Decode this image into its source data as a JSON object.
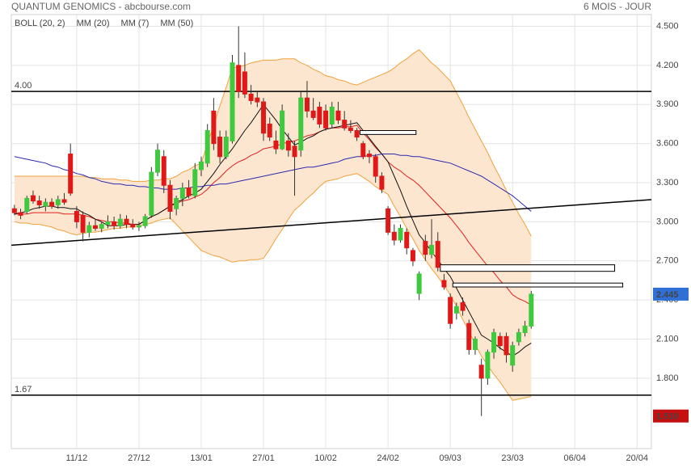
{
  "chart_data": {
    "type": "candlestick",
    "title": "QUANTUM GENOMICS - abcbourse.com",
    "subtitle": "6 MOIS - JOUR",
    "grid": true,
    "xlim": [
      -0.5,
      102.3
    ],
    "xticks": [
      {
        "value": 10,
        "label": "11/12"
      },
      {
        "value": 20,
        "label": "27/12"
      },
      {
        "value": 30,
        "label": "13/01"
      },
      {
        "value": 40,
        "label": "27/01"
      },
      {
        "value": 50,
        "label": "10/02"
      },
      {
        "value": 60,
        "label": "24/02"
      },
      {
        "value": 70,
        "label": "09/03"
      },
      {
        "value": 80,
        "label": "23/03"
      },
      {
        "value": 90,
        "label": "06/04"
      },
      {
        "value": 100,
        "label": "20/04"
      }
    ],
    "ylim": [
      1.26,
      4.59
    ],
    "yticks": [
      {
        "value": 4.5,
        "label": "4.500"
      },
      {
        "value": 4.2,
        "label": "4.200"
      },
      {
        "value": 3.9,
        "label": "3.900"
      },
      {
        "value": 3.6,
        "label": "3.600"
      },
      {
        "value": 3.3,
        "label": "3.300"
      },
      {
        "value": 3.0,
        "label": "3.000"
      },
      {
        "value": 2.7,
        "label": "2.700"
      },
      {
        "value": 2.4,
        "label": "2.400"
      },
      {
        "value": 2.1,
        "label": "2.100"
      },
      {
        "value": 1.8,
        "label": "1.800"
      }
    ],
    "up_color": "#3fc93f",
    "down_color": "#e01818",
    "open": [
      3.1,
      3.07,
      3.08,
      3.2,
      3.16,
      3.12,
      3.15,
      3.13,
      3.17,
      3.52,
      3.08,
      3.05,
      2.92,
      2.97,
      2.95,
      2.98,
      3.0,
      2.97,
      3.02,
      2.98,
      2.96,
      2.97,
      3.05,
      3.38,
      3.5,
      3.28,
      3.1,
      3.18,
      3.26,
      3.2,
      3.4,
      3.45,
      3.85,
      3.65,
      3.5,
      3.62,
      4.2,
      4.15,
      3.98,
      3.95,
      3.92,
      3.75,
      3.62,
      3.56,
      3.62,
      3.58,
      3.55,
      3.95,
      3.85,
      3.88,
      3.85,
      3.75,
      3.85,
      3.78,
      3.72,
      3.7,
      3.6,
      3.52,
      3.5,
      3.35,
      3.1,
      2.92,
      2.86,
      2.92,
      2.78,
      2.45,
      2.85,
      2.75,
      2.85,
      2.55,
      2.42,
      2.3,
      2.38,
      2.22,
      2.02,
      1.9,
      1.8,
      2.0,
      2.12,
      2.12,
      1.9,
      2.08,
      2.15,
      2.2
    ],
    "high": [
      3.13,
      3.1,
      3.2,
      3.24,
      3.2,
      3.18,
      3.18,
      3.2,
      3.22,
      3.6,
      3.12,
      3.08,
      3.0,
      3.02,
      3.0,
      3.05,
      3.04,
      3.06,
      3.05,
      3.02,
      3.0,
      3.06,
      3.42,
      3.6,
      3.55,
      3.32,
      3.2,
      3.3,
      3.32,
      3.45,
      3.5,
      3.75,
      3.95,
      3.7,
      3.7,
      4.28,
      4.5,
      4.3,
      4.05,
      4.0,
      3.95,
      3.8,
      3.7,
      3.9,
      3.68,
      3.62,
      4.0,
      4.08,
      3.95,
      3.92,
      3.9,
      3.92,
      3.92,
      3.85,
      3.78,
      3.72,
      3.62,
      3.55,
      3.52,
      3.38,
      3.12,
      2.98,
      2.98,
      2.95,
      2.8,
      2.62,
      2.9,
      3.02,
      2.92,
      2.6,
      2.45,
      2.38,
      2.42,
      2.25,
      2.12,
      1.95,
      2.02,
      2.18,
      2.15,
      2.15,
      2.08,
      2.18,
      2.24,
      2.47
    ],
    "low": [
      3.05,
      3.02,
      3.06,
      3.14,
      3.1,
      3.08,
      3.1,
      3.1,
      3.13,
      3.2,
      2.95,
      2.85,
      2.88,
      2.93,
      2.92,
      2.95,
      2.94,
      2.95,
      2.95,
      2.94,
      2.93,
      2.95,
      3.03,
      3.35,
      3.22,
      3.02,
      3.05,
      3.12,
      3.18,
      3.18,
      3.35,
      3.42,
      3.55,
      3.45,
      3.48,
      3.6,
      3.95,
      3.95,
      3.9,
      3.88,
      3.62,
      3.62,
      3.52,
      3.55,
      3.5,
      3.2,
      3.5,
      3.8,
      3.78,
      3.72,
      3.7,
      3.72,
      3.75,
      3.7,
      3.68,
      3.62,
      3.48,
      3.45,
      3.3,
      3.22,
      2.9,
      2.82,
      2.84,
      2.75,
      2.66,
      2.4,
      2.7,
      2.72,
      2.62,
      2.48,
      2.18,
      2.25,
      2.28,
      1.98,
      1.98,
      1.51,
      1.75,
      1.95,
      2.02,
      1.92,
      1.85,
      2.05,
      2.12,
      2.18
    ],
    "close": [
      3.07,
      3.05,
      3.18,
      3.16,
      3.13,
      3.15,
      3.12,
      3.17,
      3.15,
      3.22,
      3.0,
      2.92,
      2.97,
      2.95,
      2.98,
      3.0,
      2.97,
      3.02,
      2.98,
      2.96,
      2.97,
      3.04,
      3.38,
      3.55,
      3.28,
      3.08,
      3.18,
      3.26,
      3.2,
      3.4,
      3.46,
      3.7,
      3.6,
      3.5,
      3.65,
      4.22,
      4.0,
      3.98,
      3.93,
      3.92,
      3.68,
      3.65,
      3.56,
      3.85,
      3.55,
      3.5,
      3.95,
      3.85,
      3.8,
      3.75,
      3.72,
      3.88,
      3.78,
      3.72,
      3.7,
      3.65,
      3.5,
      3.5,
      3.35,
      3.25,
      2.92,
      2.86,
      2.95,
      2.8,
      2.7,
      2.6,
      2.75,
      2.82,
      2.65,
      2.5,
      2.22,
      2.35,
      2.32,
      2.02,
      2.1,
      1.8,
      2.0,
      2.15,
      2.05,
      1.98,
      2.05,
      2.15,
      2.2,
      2.445
    ],
    "series": [
      {
        "name": "BOLL (20, 2)",
        "color": "#f0a23c",
        "fill": "#fde6cf",
        "upper": [
          3.35,
          3.35,
          3.35,
          3.35,
          3.35,
          3.35,
          3.35,
          3.35,
          3.35,
          3.35,
          3.35,
          3.35,
          3.34,
          3.34,
          3.33,
          3.33,
          3.33,
          3.32,
          3.32,
          3.31,
          3.31,
          3.31,
          3.32,
          3.32,
          3.33,
          3.33,
          3.35,
          3.38,
          3.4,
          3.43,
          3.45,
          3.6,
          3.74,
          3.89,
          4.03,
          4.18,
          4.19,
          4.2,
          4.22,
          4.23,
          4.24,
          4.24,
          4.24,
          4.25,
          4.25,
          4.25,
          4.22,
          4.2,
          4.17,
          4.15,
          4.12,
          4.11,
          4.09,
          4.08,
          4.06,
          4.05,
          4.07,
          4.09,
          4.11,
          4.13,
          4.15,
          4.18,
          4.22,
          4.25,
          4.29,
          4.32,
          4.27,
          4.22,
          4.18,
          4.13,
          4.08,
          3.99,
          3.9,
          3.8,
          3.71,
          3.62,
          3.53,
          3.43,
          3.34,
          3.24,
          3.15,
          3.06,
          2.98,
          2.89
        ],
        "lower": [
          3.0,
          2.99,
          2.99,
          2.98,
          2.98,
          2.97,
          2.96,
          2.94,
          2.93,
          2.91,
          2.9,
          2.91,
          2.92,
          2.92,
          2.93,
          2.94,
          2.95,
          2.95,
          2.96,
          2.96,
          2.97,
          2.98,
          2.99,
          3.01,
          3.02,
          3.03,
          2.98,
          2.93,
          2.88,
          2.83,
          2.78,
          2.76,
          2.74,
          2.73,
          2.71,
          2.69,
          2.7,
          2.7,
          2.71,
          2.71,
          2.72,
          2.79,
          2.87,
          2.94,
          3.02,
          3.09,
          3.13,
          3.18,
          3.22,
          3.27,
          3.31,
          3.32,
          3.33,
          3.35,
          3.36,
          3.37,
          3.34,
          3.31,
          3.27,
          3.24,
          3.21,
          3.12,
          3.04,
          2.95,
          2.87,
          2.78,
          2.71,
          2.64,
          2.58,
          2.51,
          2.44,
          2.35,
          2.25,
          2.16,
          2.06,
          1.97,
          1.9,
          1.83,
          1.77,
          1.7,
          1.63,
          1.64,
          1.65,
          1.66
        ]
      },
      {
        "name": "MM (20)",
        "color": "#e02020",
        "values": [
          3.06,
          3.06,
          3.06,
          3.07,
          3.07,
          3.07,
          3.07,
          3.07,
          3.06,
          3.06,
          3.06,
          3.05,
          3.04,
          3.02,
          3.01,
          3.0,
          3.0,
          2.99,
          2.99,
          2.98,
          2.98,
          3.01,
          3.04,
          3.06,
          3.09,
          3.12,
          3.14,
          3.16,
          3.17,
          3.19,
          3.21,
          3.25,
          3.3,
          3.34,
          3.39,
          3.43,
          3.46,
          3.48,
          3.51,
          3.53,
          3.56,
          3.57,
          3.58,
          3.6,
          3.61,
          3.62,
          3.64,
          3.66,
          3.67,
          3.69,
          3.71,
          3.72,
          3.72,
          3.73,
          3.73,
          3.74,
          3.68,
          3.63,
          3.57,
          3.52,
          3.46,
          3.42,
          3.39,
          3.35,
          3.32,
          3.28,
          3.23,
          3.18,
          3.13,
          3.08,
          3.03,
          2.97,
          2.91,
          2.84,
          2.78,
          2.72,
          2.66,
          2.61,
          2.55,
          2.5,
          2.44,
          2.41,
          2.39,
          2.36
        ]
      },
      {
        "name": "MM (7)",
        "color": "#111111",
        "values": [
          3.06,
          3.07,
          3.08,
          3.1,
          3.11,
          3.12,
          3.12,
          3.11,
          3.11,
          3.1,
          3.1,
          3.07,
          3.05,
          3.02,
          3.0,
          2.97,
          2.97,
          2.97,
          2.98,
          2.98,
          2.98,
          3.01,
          3.04,
          3.06,
          3.09,
          3.12,
          3.15,
          3.17,
          3.2,
          3.22,
          3.25,
          3.31,
          3.37,
          3.44,
          3.5,
          3.56,
          3.63,
          3.7,
          3.76,
          3.83,
          3.9,
          3.84,
          3.78,
          3.71,
          3.65,
          3.59,
          3.61,
          3.64,
          3.66,
          3.69,
          3.71,
          3.72,
          3.73,
          3.74,
          3.75,
          3.76,
          3.7,
          3.64,
          3.58,
          3.52,
          3.46,
          3.35,
          3.24,
          3.12,
          3.01,
          2.9,
          2.84,
          2.77,
          2.71,
          2.64,
          2.58,
          2.49,
          2.4,
          2.31,
          2.22,
          2.13,
          2.1,
          2.07,
          2.03,
          2.0,
          1.97,
          2.0,
          2.04,
          2.07
        ]
      },
      {
        "name": "MM (50)",
        "color": "#2a2ab0",
        "values": [
          3.5,
          3.49,
          3.48,
          3.47,
          3.46,
          3.45,
          3.43,
          3.42,
          3.4,
          3.39,
          3.37,
          3.36,
          3.34,
          3.33,
          3.31,
          3.3,
          3.29,
          3.29,
          3.28,
          3.28,
          3.27,
          3.27,
          3.26,
          3.26,
          3.25,
          3.25,
          3.25,
          3.26,
          3.26,
          3.27,
          3.27,
          3.28,
          3.28,
          3.29,
          3.29,
          3.3,
          3.31,
          3.32,
          3.33,
          3.34,
          3.35,
          3.36,
          3.37,
          3.38,
          3.39,
          3.4,
          3.41,
          3.42,
          3.42,
          3.43,
          3.44,
          3.45,
          3.46,
          3.48,
          3.49,
          3.5,
          3.5,
          3.51,
          3.51,
          3.52,
          3.52,
          3.52,
          3.51,
          3.51,
          3.5,
          3.5,
          3.49,
          3.48,
          3.47,
          3.46,
          3.45,
          3.43,
          3.41,
          3.39,
          3.37,
          3.35,
          3.32,
          3.29,
          3.26,
          3.23,
          3.2,
          3.16,
          3.12,
          3.08
        ]
      }
    ],
    "levels": [
      {
        "value": 4.0,
        "label": "4.00"
      },
      {
        "value": 1.67,
        "label": "1.67"
      }
    ],
    "trendline": [
      2.82,
      3.17
    ],
    "boxes": [
      {
        "x": [
          55.5,
          64.5
        ],
        "y": [
          3.67,
          3.7
        ]
      },
      {
        "x": [
          68.4,
          96.4
        ],
        "y": [
          2.62,
          2.67
        ]
      },
      {
        "x": [
          70.4,
          97.7
        ],
        "y": [
          2.5,
          2.53
        ]
      }
    ],
    "price_tags": [
      {
        "value": 2.445,
        "label": "2.445",
        "color": "#2f6fd6"
      },
      {
        "value": 1.51,
        "label": "1.510",
        "color": "#c41010"
      }
    ]
  }
}
